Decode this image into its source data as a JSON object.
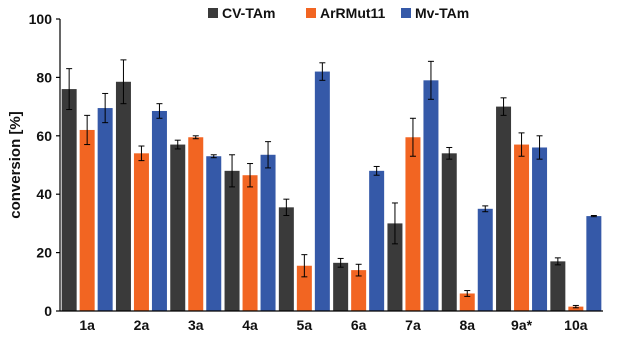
{
  "chart_data": {
    "type": "bar",
    "title": "",
    "xlabel": "",
    "ylabel": "conversion [%]",
    "ylim": [
      0,
      100
    ],
    "yticks": [
      0,
      20,
      40,
      60,
      80,
      100
    ],
    "grid": false,
    "legend_position": "top-center",
    "categories": [
      "1a",
      "2a",
      "3a",
      "4a",
      "5a",
      "6a",
      "7a",
      "8a",
      "9a*",
      "10a"
    ],
    "series": [
      {
        "name": "CV-TAm",
        "color": "#3a3a3a",
        "values": [
          76,
          78.5,
          57,
          48,
          35.5,
          16.5,
          30,
          54,
          70,
          17
        ],
        "errors": [
          7,
          7.5,
          1.5,
          5.5,
          2.8,
          1.5,
          7,
          2,
          3,
          1.2
        ]
      },
      {
        "name": "ArRMut11",
        "color": "#f26522",
        "values": [
          62,
          54,
          59.5,
          46.5,
          15.5,
          14,
          59.5,
          6,
          57,
          1.5
        ],
        "errors": [
          5,
          2.5,
          0.5,
          4,
          3.8,
          2,
          6.5,
          1,
          4,
          0.4
        ]
      },
      {
        "name": "Mv-TAm",
        "color": "#3559a8",
        "values": [
          69.5,
          68.5,
          53,
          53.5,
          82,
          48,
          79,
          35,
          56,
          32.5
        ],
        "errors": [
          5,
          2.5,
          0.5,
          4.5,
          3,
          1.5,
          6.5,
          1,
          4,
          0.2
        ]
      }
    ]
  }
}
